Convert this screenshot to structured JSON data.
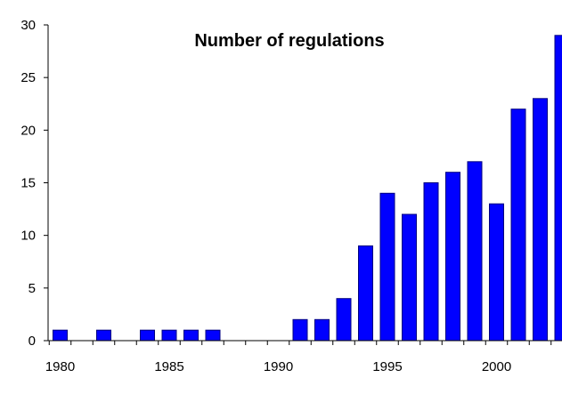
{
  "chart_data": {
    "type": "bar",
    "title": "Number of regulations",
    "xlabel": "",
    "ylabel": "",
    "ylim": [
      0,
      30
    ],
    "yticks": [
      "0",
      "5",
      "10",
      "15",
      "20",
      "25",
      "30"
    ],
    "xtick_labels": [
      "1980",
      "1985",
      "1990",
      "1995",
      "2000"
    ],
    "categories": [
      "1980",
      "1981",
      "1982",
      "1983",
      "1984",
      "1985",
      "1986",
      "1987",
      "1988",
      "1989",
      "1990",
      "1991",
      "1992",
      "1993",
      "1994",
      "1995",
      "1996",
      "1997",
      "1998",
      "1999",
      "2000",
      "2001",
      "2002",
      "2003"
    ],
    "values": [
      1,
      0,
      1,
      0,
      1,
      1,
      1,
      1,
      0,
      0,
      0,
      2,
      2,
      4,
      9,
      14,
      12,
      15,
      16,
      17,
      13,
      22,
      23,
      29
    ],
    "bar_color": "#0000ff",
    "bar_outline": "#000080",
    "grid": false,
    "legend": "none"
  }
}
